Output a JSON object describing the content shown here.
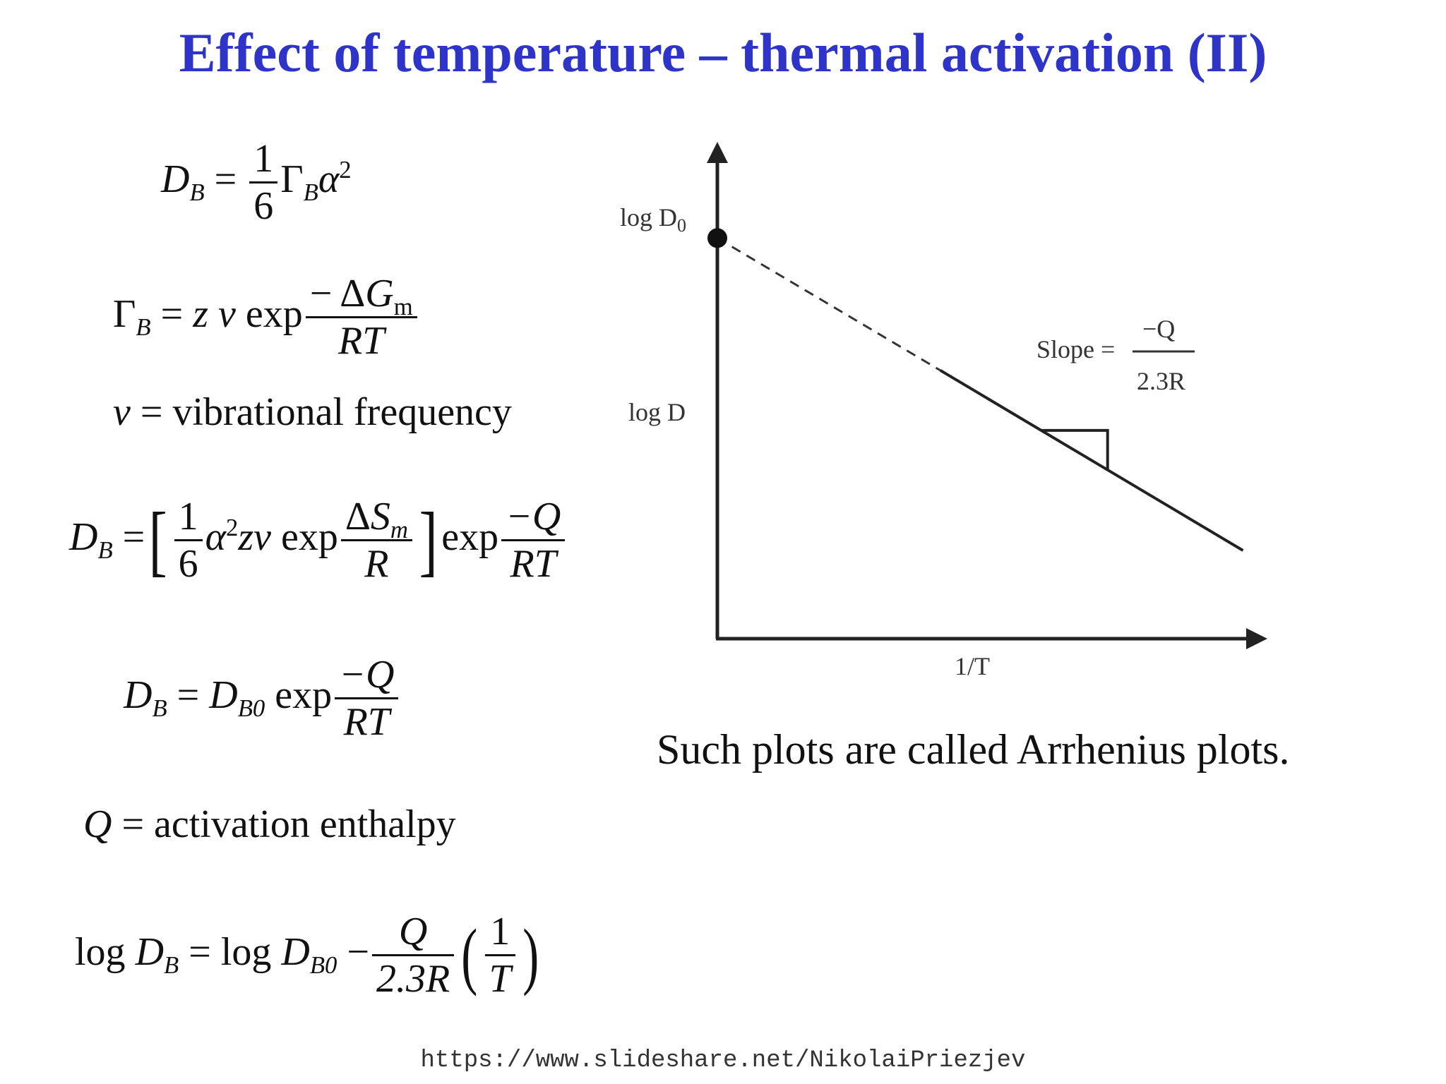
{
  "title": "Effect of temperature – thermal activation (II)",
  "equations": {
    "eq1": {
      "lhs_sym": "D",
      "lhs_sub": "B",
      "eq": "=",
      "frac_num": "1",
      "frac_den": "6",
      "gamma": "Γ",
      "gamma_sub": "B",
      "alpha": "α",
      "alpha_sup": "2"
    },
    "eq2": {
      "gamma": "Γ",
      "gamma_sub": "B",
      "eq": "=",
      "z": "z",
      "v": "v",
      "exp": "exp",
      "num_minus": "−",
      "num_delta": "Δ",
      "num_G": "G",
      "num_G_sub": "m",
      "den": "RT"
    },
    "eq3": {
      "v": "v",
      "rest": "= vibrational frequency"
    },
    "eq4": {
      "lhs_sym": "D",
      "lhs_sub": "B",
      "eq": "=",
      "lbracket": "[",
      "frac_num": "1",
      "frac_den": "6",
      "alpha": "α",
      "alpha_sup": "2",
      "zv": "zv",
      "exp": "exp",
      "num_delta": "Δ",
      "num_S": "S",
      "num_S_sub": "m",
      "den_R": "R",
      "rbracket": "]",
      "exp2": "exp",
      "num2": "−Q",
      "den2": "RT"
    },
    "eq5": {
      "lhs_sym": "D",
      "lhs_sub": "B",
      "eq": "=",
      "rhs_sym": "D",
      "rhs_sub": "B0",
      "exp": "exp",
      "num": "−Q",
      "den": "RT"
    },
    "eq6": {
      "Q": "Q",
      "rest": "= activation enthalpy"
    },
    "eq7": {
      "log1": "log ",
      "lhs_sym": "D",
      "lhs_sub": "B",
      "eq": "= log ",
      "rhs_sym": "D",
      "rhs_sub": "B0",
      "minus": " −",
      "frac_num": "Q",
      "frac_den": "2.3R",
      "lparen": "(",
      "inner_num": "1",
      "inner_den": "T",
      "rparen": ")"
    }
  },
  "chart": {
    "label_logD0": "log D",
    "label_logD0_sub": "0",
    "label_logD": "log D",
    "label_x": "1/T",
    "slope_label": "Slope =",
    "slope_num": "−Q",
    "slope_den": "2.3R"
  },
  "chart_data": {
    "type": "line",
    "title": "",
    "xlabel": "1/T",
    "ylabel": "log D",
    "series": [
      {
        "x": [
          0.42,
          0.99
        ],
        "y": [
          0.73,
          0.24
        ]
      }
    ],
    "extrapolation_dashed": {
      "x": [
        0.0,
        0.42
      ],
      "y": [
        1.09,
        0.73
      ]
    },
    "intercept_marker": {
      "x": 0.0,
      "y": 1.09
    },
    "slope_triangle": true,
    "grid": false
  },
  "caption": "Such plots are called Arrhenius plots.",
  "source": "https://www.slideshare.net/NikolaiPriezjev"
}
